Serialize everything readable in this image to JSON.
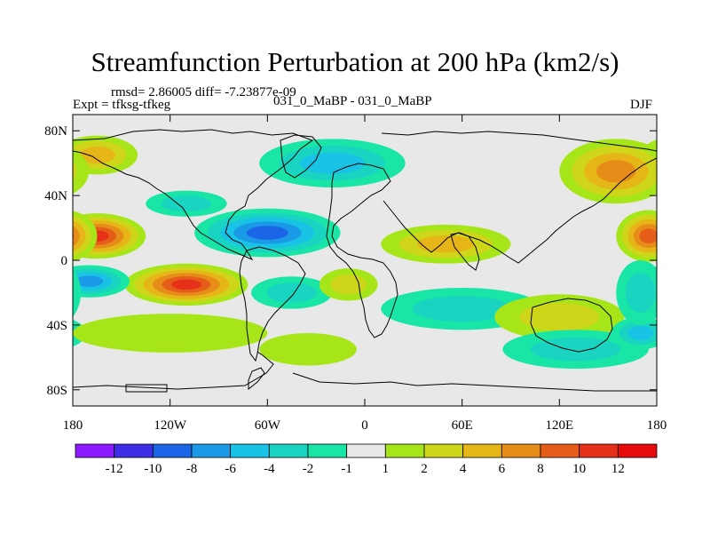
{
  "title": "Streamfunction Perturbation at 200 hPa (km2/s)",
  "stats_line": "rmsd= 2.86005 diff= -7.23877e-09",
  "experiment": "Expt = tfksg-tfkeg",
  "comparison": "031_0_MaBP - 031_0_MaBP",
  "season": "DJF",
  "chart_data": {
    "type": "heatmap",
    "title": "Streamfunction Perturbation at 200 hPa (km2/s)",
    "x_ticks": [
      {
        "lon": -180,
        "label": "180"
      },
      {
        "lon": -120,
        "label": "120W"
      },
      {
        "lon": -60,
        "label": "60W"
      },
      {
        "lon": 0,
        "label": "0"
      },
      {
        "lon": 60,
        "label": "60E"
      },
      {
        "lon": 120,
        "label": "120E"
      },
      {
        "lon": 180,
        "label": "180"
      }
    ],
    "y_ticks": [
      {
        "lat": 80,
        "label": "80N"
      },
      {
        "lat": 40,
        "label": "40N"
      },
      {
        "lat": 0,
        "label": "0"
      },
      {
        "lat": -40,
        "label": "40S"
      },
      {
        "lat": -80,
        "label": "80S"
      }
    ],
    "xlim": [
      -180,
      180
    ],
    "ylim": [
      -90,
      90
    ],
    "colorbar": {
      "labels": [
        "-12",
        "-10",
        "-8",
        "-6",
        "-4",
        "-2",
        "-1",
        "1",
        "2",
        "4",
        "6",
        "8",
        "10",
        "12"
      ],
      "colors": [
        "#8c1aff",
        "#3d2ee6",
        "#1a66e6",
        "#1a99e6",
        "#19c3e6",
        "#19d4c0",
        "#19e6a6",
        "#e8e8e8",
        "#a6e619",
        "#cfd619",
        "#e6b619",
        "#e68c19",
        "#e65c19",
        "#e63019",
        "#e60a0a"
      ]
    },
    "blobs": [
      {
        "lon": -165,
        "lat": 15,
        "rx": 30,
        "ry": 14,
        "level": 6
      },
      {
        "lon": -110,
        "lat": -15,
        "rx": 38,
        "ry": 13,
        "level": 6
      },
      {
        "lon": -60,
        "lat": 17,
        "rx": 45,
        "ry": 15,
        "level": -5
      },
      {
        "lon": -170,
        "lat": -13,
        "rx": 25,
        "ry": 10,
        "level": -4
      },
      {
        "lon": -20,
        "lat": 60,
        "rx": 45,
        "ry": 15,
        "level": -3
      },
      {
        "lon": -110,
        "lat": 35,
        "rx": 25,
        "ry": 8,
        "level": -2
      },
      {
        "lon": -165,
        "lat": 65,
        "rx": 25,
        "ry": 12,
        "level": 3
      },
      {
        "lon": 155,
        "lat": 55,
        "rx": 35,
        "ry": 20,
        "level": 4
      },
      {
        "lon": 175,
        "lat": 15,
        "rx": 20,
        "ry": 16,
        "level": 5
      },
      {
        "lon": 50,
        "lat": 10,
        "rx": 40,
        "ry": 12,
        "level": 3
      },
      {
        "lon": 60,
        "lat": -30,
        "rx": 50,
        "ry": 13,
        "level": -2
      },
      {
        "lon": 120,
        "lat": -35,
        "rx": 40,
        "ry": 14,
        "level": 2
      },
      {
        "lon": 130,
        "lat": -55,
        "rx": 45,
        "ry": 12,
        "level": -2
      },
      {
        "lon": 170,
        "lat": -45,
        "rx": 18,
        "ry": 10,
        "level": -3
      },
      {
        "lon": -120,
        "lat": -45,
        "rx": 60,
        "ry": 12,
        "level": 1
      },
      {
        "lon": -45,
        "lat": -20,
        "rx": 25,
        "ry": 10,
        "level": -2
      },
      {
        "lon": -10,
        "lat": -15,
        "rx": 18,
        "ry": 10,
        "level": 2
      },
      {
        "lon": -35,
        "lat": -55,
        "rx": 30,
        "ry": 10,
        "level": 1
      },
      {
        "lon": 170,
        "lat": -20,
        "rx": 15,
        "ry": 20,
        "level": -2
      }
    ]
  }
}
